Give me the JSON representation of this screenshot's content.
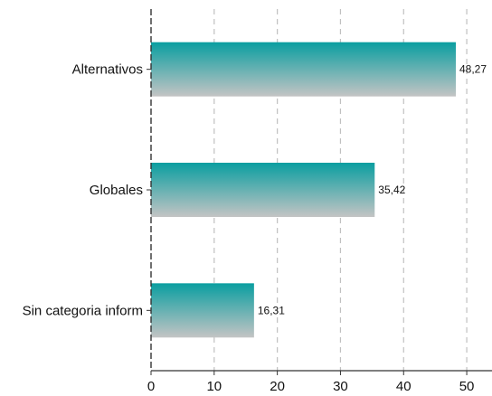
{
  "chart_data": {
    "type": "bar",
    "orientation": "horizontal",
    "categories": [
      "Alternativos",
      "Globales",
      "Sin categoria inform"
    ],
    "values": [
      48.27,
      35.42,
      16.31
    ],
    "value_labels": [
      "48,27",
      "35,42",
      "16,31"
    ],
    "title": "",
    "xlabel": "",
    "ylabel": "",
    "xlim": [
      0,
      54
    ],
    "xticks": [
      0,
      10,
      20,
      30,
      40,
      50
    ],
    "grid": "vertical dashed",
    "legend": "none",
    "colors": {
      "bar_top": "#0a9ea0",
      "bar_bottom": "#c4c4c4",
      "grid": "#c0c0c0",
      "axis": "#333333"
    }
  }
}
